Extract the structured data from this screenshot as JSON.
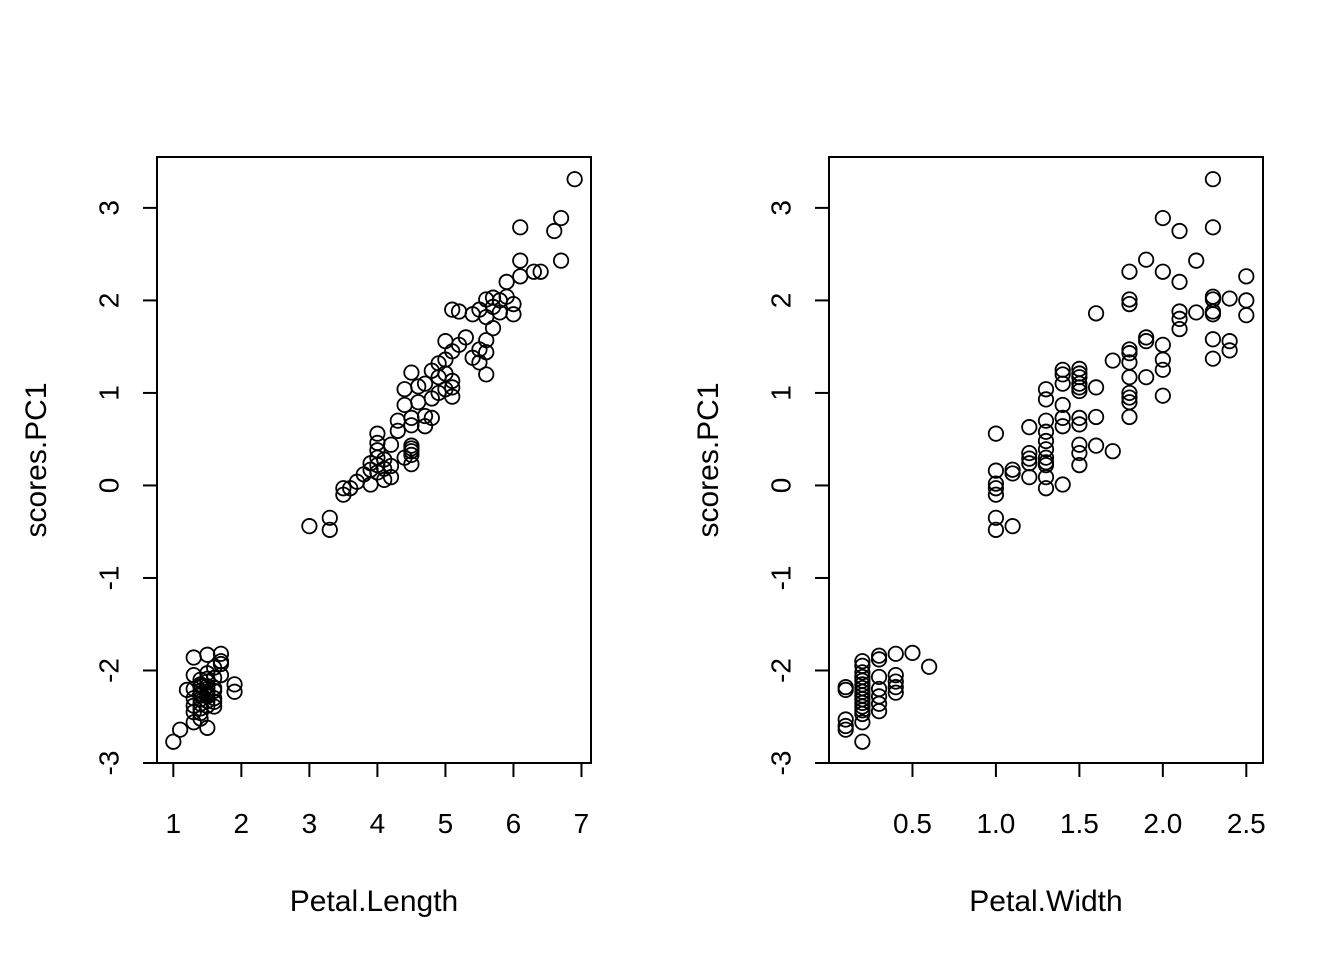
{
  "chart_data": [
    {
      "type": "scatter",
      "xlabel": "Petal.Length",
      "ylabel": "scores.PC1",
      "xlim": [
        0.76,
        7.14
      ],
      "ylim": [
        -3.0,
        3.55
      ],
      "xticks": [
        1,
        2,
        3,
        4,
        5,
        6,
        7
      ],
      "xtick_labels": [
        "1",
        "2",
        "3",
        "4",
        "5",
        "6",
        "7"
      ],
      "yticks": [
        -3,
        -2,
        -1,
        0,
        1,
        2,
        3
      ],
      "ytick_labels": [
        "-3",
        "-2",
        "-1",
        "0",
        "1",
        "2",
        "3"
      ],
      "grid": false,
      "points": [
        [
          1.0,
          -2.77
        ],
        [
          1.1,
          -2.64
        ],
        [
          1.2,
          -2.21
        ],
        [
          1.3,
          -1.86
        ],
        [
          1.3,
          -2.05
        ],
        [
          1.3,
          -2.2
        ],
        [
          1.3,
          -2.3
        ],
        [
          1.3,
          -2.38
        ],
        [
          1.3,
          -2.45
        ],
        [
          1.3,
          -2.56
        ],
        [
          1.4,
          -2.1
        ],
        [
          1.4,
          -2.17
        ],
        [
          1.4,
          -2.22
        ],
        [
          1.4,
          -2.27
        ],
        [
          1.4,
          -2.31
        ],
        [
          1.4,
          -2.36
        ],
        [
          1.4,
          -2.41
        ],
        [
          1.4,
          -2.46
        ],
        [
          1.4,
          -2.52
        ],
        [
          1.4,
          -2.15
        ],
        [
          1.4,
          -2.25
        ],
        [
          1.5,
          -1.83
        ],
        [
          1.5,
          -2.03
        ],
        [
          1.5,
          -2.12
        ],
        [
          1.5,
          -2.17
        ],
        [
          1.5,
          -2.2
        ],
        [
          1.5,
          -2.24
        ],
        [
          1.5,
          -2.28
        ],
        [
          1.5,
          -2.33
        ],
        [
          1.5,
          -2.38
        ],
        [
          1.5,
          -2.62
        ],
        [
          1.5,
          -2.09
        ],
        [
          1.5,
          -2.26
        ],
        [
          1.6,
          -1.97
        ],
        [
          1.6,
          -2.08
        ],
        [
          1.6,
          -2.19
        ],
        [
          1.6,
          -2.3
        ],
        [
          1.6,
          -2.34
        ],
        [
          1.6,
          -2.39
        ],
        [
          1.6,
          -2.22
        ],
        [
          1.7,
          -1.82
        ],
        [
          1.7,
          -1.9
        ],
        [
          1.7,
          -1.93
        ],
        [
          1.7,
          -2.05
        ],
        [
          1.9,
          -2.15
        ],
        [
          1.9,
          -2.23
        ],
        [
          3.0,
          -0.44
        ],
        [
          3.3,
          -0.35
        ],
        [
          3.3,
          -0.48
        ],
        [
          3.5,
          -0.03
        ],
        [
          3.5,
          -0.1
        ],
        [
          3.6,
          -0.03
        ],
        [
          3.7,
          0.04
        ],
        [
          3.8,
          0.12
        ],
        [
          3.9,
          0.01
        ],
        [
          3.9,
          0.17
        ],
        [
          3.9,
          0.24
        ],
        [
          4.0,
          0.14
        ],
        [
          4.0,
          0.22
        ],
        [
          4.0,
          0.3
        ],
        [
          4.0,
          0.38
        ],
        [
          4.0,
          0.46
        ],
        [
          4.0,
          0.56
        ],
        [
          4.1,
          0.06
        ],
        [
          4.1,
          0.18
        ],
        [
          4.1,
          0.28
        ],
        [
          4.2,
          0.09
        ],
        [
          4.2,
          0.21
        ],
        [
          4.2,
          0.44
        ],
        [
          4.3,
          0.59
        ],
        [
          4.3,
          0.7
        ],
        [
          4.4,
          0.3
        ],
        [
          4.4,
          0.87
        ],
        [
          4.4,
          1.04
        ],
        [
          4.5,
          0.23
        ],
        [
          4.5,
          0.33
        ],
        [
          4.5,
          0.37
        ],
        [
          4.5,
          0.4
        ],
        [
          4.5,
          0.43
        ],
        [
          4.5,
          0.65
        ],
        [
          4.5,
          0.73
        ],
        [
          4.5,
          1.22
        ],
        [
          4.6,
          0.9
        ],
        [
          4.6,
          1.07
        ],
        [
          4.7,
          0.64
        ],
        [
          4.7,
          0.75
        ],
        [
          4.7,
          1.1
        ],
        [
          4.8,
          0.73
        ],
        [
          4.8,
          0.94
        ],
        [
          4.8,
          1.24
        ],
        [
          4.9,
          1.0
        ],
        [
          4.9,
          1.17
        ],
        [
          4.9,
          1.32
        ],
        [
          5.0,
          1.04
        ],
        [
          5.0,
          1.21
        ],
        [
          5.0,
          1.36
        ],
        [
          5.0,
          1.56
        ],
        [
          5.1,
          0.96
        ],
        [
          5.1,
          1.06
        ],
        [
          5.1,
          1.13
        ],
        [
          5.1,
          1.45
        ],
        [
          5.1,
          1.9
        ],
        [
          5.2,
          1.52
        ],
        [
          5.2,
          1.88
        ],
        [
          5.3,
          1.6
        ],
        [
          5.4,
          1.38
        ],
        [
          5.4,
          1.85
        ],
        [
          5.5,
          1.33
        ],
        [
          5.5,
          1.47
        ],
        [
          5.5,
          1.9
        ],
        [
          5.6,
          1.2
        ],
        [
          5.6,
          1.44
        ],
        [
          5.6,
          1.57
        ],
        [
          5.6,
          1.82
        ],
        [
          5.6,
          2.01
        ],
        [
          5.7,
          1.7
        ],
        [
          5.7,
          1.93
        ],
        [
          5.7,
          2.03
        ],
        [
          5.8,
          1.87
        ],
        [
          5.8,
          2.0
        ],
        [
          5.9,
          2.2
        ],
        [
          5.9,
          2.04
        ],
        [
          6.0,
          1.85
        ],
        [
          6.0,
          1.96
        ],
        [
          6.1,
          2.26
        ],
        [
          6.1,
          2.43
        ],
        [
          6.1,
          2.79
        ],
        [
          6.3,
          2.31
        ],
        [
          6.4,
          2.31
        ],
        [
          6.6,
          2.75
        ],
        [
          6.7,
          2.43
        ],
        [
          6.7,
          2.89
        ],
        [
          6.9,
          3.31
        ]
      ]
    },
    {
      "type": "scatter",
      "xlabel": "Petal.Width",
      "ylabel": "scores.PC1",
      "xlim": [
        0.0,
        2.6
      ],
      "ylim": [
        -3.0,
        3.55
      ],
      "xticks": [
        0.5,
        1.0,
        1.5,
        2.0,
        2.5
      ],
      "xtick_labels": [
        "0.5",
        "1.0",
        "1.5",
        "2.0",
        "2.5"
      ],
      "yticks": [
        -3,
        -2,
        -1,
        0,
        1,
        2,
        3
      ],
      "ytick_labels": [
        "-3",
        "-2",
        "-1",
        "0",
        "1",
        "2",
        "3"
      ],
      "grid": false,
      "points": [
        [
          0.1,
          -2.21
        ],
        [
          0.1,
          -2.18
        ],
        [
          0.1,
          -2.53
        ],
        [
          0.1,
          -2.6
        ],
        [
          0.1,
          -2.64
        ],
        [
          0.2,
          -1.9
        ],
        [
          0.2,
          -1.95
        ],
        [
          0.2,
          -2.02
        ],
        [
          0.2,
          -2.07
        ],
        [
          0.2,
          -2.11
        ],
        [
          0.2,
          -2.15
        ],
        [
          0.2,
          -2.19
        ],
        [
          0.2,
          -2.23
        ],
        [
          0.2,
          -2.27
        ],
        [
          0.2,
          -2.31
        ],
        [
          0.2,
          -2.35
        ],
        [
          0.2,
          -2.39
        ],
        [
          0.2,
          -2.43
        ],
        [
          0.2,
          -2.47
        ],
        [
          0.2,
          -2.56
        ],
        [
          0.2,
          -2.77
        ],
        [
          0.3,
          -1.84
        ],
        [
          0.3,
          -1.88
        ],
        [
          0.3,
          -2.07
        ],
        [
          0.3,
          -2.2
        ],
        [
          0.3,
          -2.28
        ],
        [
          0.3,
          -2.36
        ],
        [
          0.3,
          -2.44
        ],
        [
          0.4,
          -1.82
        ],
        [
          0.4,
          -2.05
        ],
        [
          0.4,
          -2.12
        ],
        [
          0.4,
          -2.18
        ],
        [
          0.4,
          -2.24
        ],
        [
          0.5,
          -1.81
        ],
        [
          0.6,
          -1.96
        ],
        [
          1.0,
          0.56
        ],
        [
          1.0,
          0.16
        ],
        [
          1.0,
          0.02
        ],
        [
          1.0,
          -0.03
        ],
        [
          1.0,
          -0.1
        ],
        [
          1.0,
          -0.35
        ],
        [
          1.0,
          -0.48
        ],
        [
          1.1,
          0.13
        ],
        [
          1.1,
          0.17
        ],
        [
          1.1,
          -0.44
        ],
        [
          1.2,
          0.63
        ],
        [
          1.2,
          0.35
        ],
        [
          1.2,
          0.29
        ],
        [
          1.2,
          0.24
        ],
        [
          1.2,
          0.09
        ],
        [
          1.3,
          1.04
        ],
        [
          1.3,
          0.93
        ],
        [
          1.3,
          0.7
        ],
        [
          1.3,
          0.58
        ],
        [
          1.3,
          0.48
        ],
        [
          1.3,
          0.39
        ],
        [
          1.3,
          0.3
        ],
        [
          1.3,
          0.25
        ],
        [
          1.3,
          0.22
        ],
        [
          1.3,
          0.09
        ],
        [
          1.3,
          -0.03
        ],
        [
          1.4,
          1.25
        ],
        [
          1.4,
          1.2
        ],
        [
          1.4,
          1.1
        ],
        [
          1.4,
          0.87
        ],
        [
          1.4,
          0.73
        ],
        [
          1.4,
          0.64
        ],
        [
          1.4,
          0.01
        ],
        [
          1.5,
          1.26
        ],
        [
          1.5,
          1.21
        ],
        [
          1.5,
          1.17
        ],
        [
          1.5,
          1.1
        ],
        [
          1.5,
          1.06
        ],
        [
          1.5,
          1.02
        ],
        [
          1.5,
          0.73
        ],
        [
          1.5,
          0.66
        ],
        [
          1.5,
          0.44
        ],
        [
          1.5,
          0.35
        ],
        [
          1.5,
          0.22
        ],
        [
          1.6,
          1.86
        ],
        [
          1.6,
          1.06
        ],
        [
          1.6,
          0.74
        ],
        [
          1.6,
          0.43
        ],
        [
          1.7,
          1.35
        ],
        [
          1.7,
          0.37
        ],
        [
          1.8,
          2.31
        ],
        [
          1.8,
          2.01
        ],
        [
          1.8,
          1.96
        ],
        [
          1.8,
          1.47
        ],
        [
          1.8,
          1.43
        ],
        [
          1.8,
          1.33
        ],
        [
          1.8,
          1.17
        ],
        [
          1.8,
          1.0
        ],
        [
          1.8,
          0.95
        ],
        [
          1.8,
          0.9
        ],
        [
          1.8,
          0.74
        ],
        [
          1.9,
          2.44
        ],
        [
          1.9,
          1.6
        ],
        [
          1.9,
          1.56
        ],
        [
          1.9,
          1.17
        ],
        [
          2.0,
          2.89
        ],
        [
          2.0,
          2.31
        ],
        [
          2.0,
          1.52
        ],
        [
          2.0,
          1.36
        ],
        [
          2.0,
          1.25
        ],
        [
          2.0,
          0.97
        ],
        [
          2.1,
          2.75
        ],
        [
          2.1,
          2.2
        ],
        [
          2.1,
          1.88
        ],
        [
          2.1,
          1.8
        ],
        [
          2.1,
          1.69
        ],
        [
          2.2,
          2.43
        ],
        [
          2.2,
          1.87
        ],
        [
          2.3,
          3.31
        ],
        [
          2.3,
          2.79
        ],
        [
          2.3,
          2.04
        ],
        [
          2.3,
          2.01
        ],
        [
          2.3,
          1.88
        ],
        [
          2.3,
          1.85
        ],
        [
          2.3,
          1.58
        ],
        [
          2.3,
          1.37
        ],
        [
          2.4,
          2.02
        ],
        [
          2.4,
          1.56
        ],
        [
          2.4,
          1.46
        ],
        [
          2.5,
          2.26
        ],
        [
          2.5,
          2.0
        ],
        [
          2.5,
          1.84
        ]
      ]
    }
  ]
}
